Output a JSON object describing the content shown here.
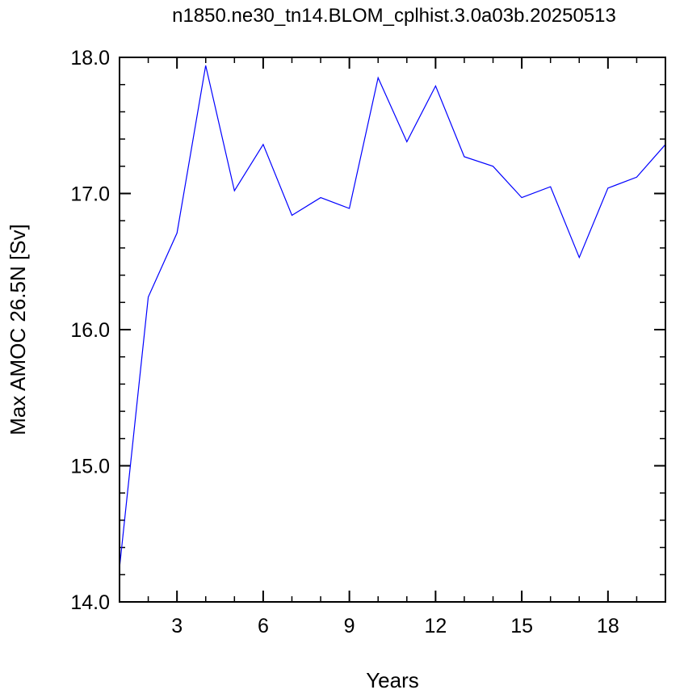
{
  "chart_data": {
    "type": "line",
    "title": "n1850.ne30_tn14.BLOM_cplhist.3.0a03b.20250513",
    "xlabel": "Years",
    "ylabel": "Max AMOC 26.5N [Sv]",
    "xlim": [
      1,
      20
    ],
    "ylim": [
      14.0,
      18.0
    ],
    "x_ticks": [
      3,
      6,
      9,
      12,
      15,
      18
    ],
    "y_ticks": [
      "14.0",
      "15.0",
      "16.0",
      "17.0",
      "18.0"
    ],
    "grid": false,
    "line_color": "#0000ff",
    "series": [
      {
        "x": [
          1,
          2,
          3,
          4,
          5,
          6,
          7,
          8,
          9,
          10,
          11,
          12,
          13,
          14,
          15,
          16,
          17,
          18,
          19,
          20
        ],
        "values": [
          14.25,
          16.24,
          16.71,
          17.94,
          17.02,
          17.36,
          16.84,
          16.97,
          16.89,
          17.85,
          17.38,
          17.79,
          17.27,
          17.2,
          16.97,
          17.05,
          16.53,
          17.04,
          17.12,
          17.36
        ]
      }
    ]
  }
}
